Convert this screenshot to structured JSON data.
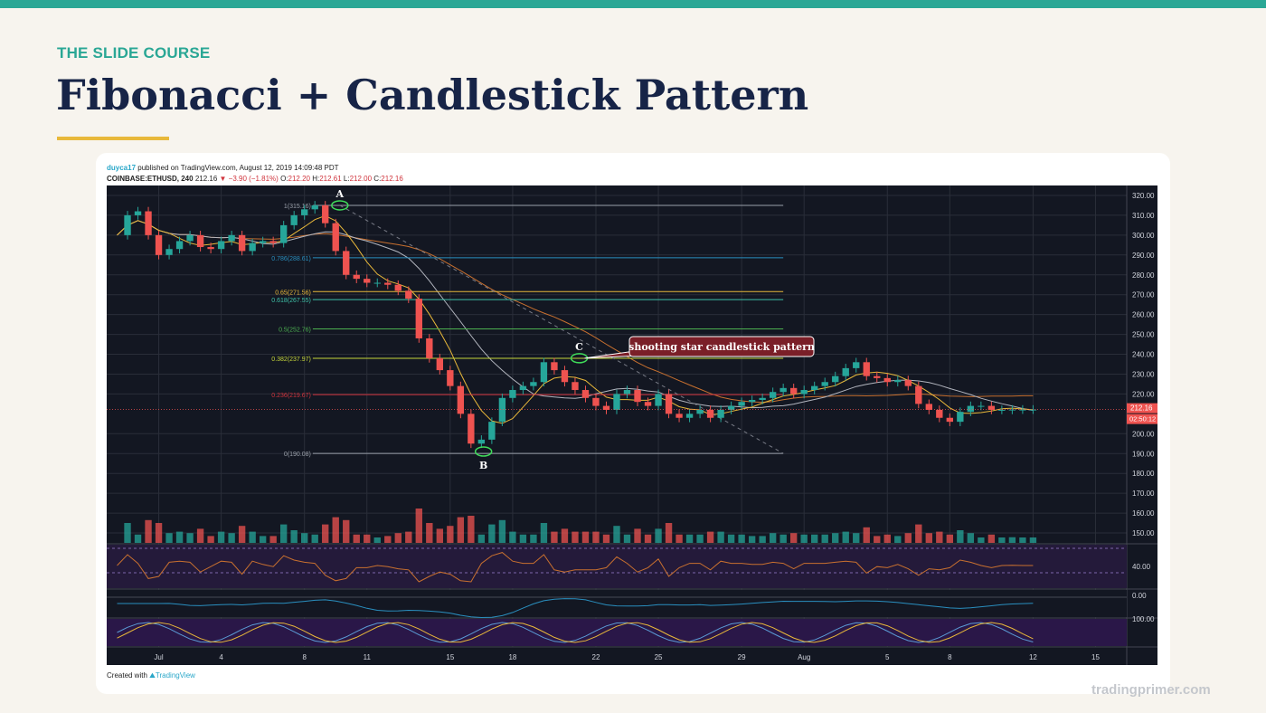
{
  "slide": {
    "kicker": "THE SLIDE COURSE",
    "title": "Fibonacci + Candlestick Pattern",
    "footer_site": "tradingprimer.com",
    "colors": {
      "accent": "#2aa795",
      "title": "#172447",
      "underline": "#e8b83a"
    }
  },
  "chart_meta": {
    "author": "duyca17",
    "published": "published on TradingView.com, August 12, 2019 14:09:48 PDT",
    "symbol": "COINBASE:ETHUSD, 240",
    "last": "212.16",
    "change": "−3.90 (−1.81%)",
    "o_label": "O:",
    "o": "212.20",
    "h_label": "H:",
    "h": "212.61",
    "l_label": "L:",
    "l": "212.00",
    "c_label": "C:",
    "c": "212.16",
    "created_with": "Created with",
    "brand": "TradingView",
    "price_tag": "212.16",
    "countdown": "02:50:12"
  },
  "chart_data": {
    "type": "line",
    "title": "",
    "xlabel": "",
    "ylabel": "",
    "ylim": [
      145,
      325
    ],
    "grid": true,
    "theme": "dark",
    "x_ticks": [
      {
        "label": "Jul",
        "day": 1
      },
      {
        "label": "4",
        "day": 4
      },
      {
        "label": "8",
        "day": 8
      },
      {
        "label": "11",
        "day": 11
      },
      {
        "label": "15",
        "day": 15
      },
      {
        "label": "18",
        "day": 18
      },
      {
        "label": "22",
        "day": 22
      },
      {
        "label": "25",
        "day": 25
      },
      {
        "label": "29",
        "day": 29
      },
      {
        "label": "Aug",
        "day": 32
      },
      {
        "label": "5",
        "day": 36
      },
      {
        "label": "8",
        "day": 39
      },
      {
        "label": "12",
        "day": 43
      },
      {
        "label": "15",
        "day": 46
      }
    ],
    "y_ticks": [
      320,
      310,
      300,
      290,
      280,
      270,
      260,
      250,
      240,
      230,
      220,
      200,
      190,
      180,
      170,
      160,
      150
    ],
    "y_tick_labels": [
      "320.00",
      "310.00",
      "300.00",
      "290.00",
      "280.00",
      "270.00",
      "260.00",
      "250.00",
      "240.00",
      "230.00",
      "220.00",
      "200.00",
      "190.00",
      "180.00",
      "170.00",
      "160.00",
      "150.00"
    ],
    "series": [
      {
        "name": "",
        "kind": "candlestick-close",
        "x": [
          -1,
          -0.5,
          0,
          0.5,
          1,
          1.5,
          2,
          2.5,
          3,
          3.5,
          4,
          4.5,
          5,
          5.5,
          6,
          6.5,
          7,
          7.5,
          8,
          8.5,
          9,
          9.5,
          10,
          10.5,
          11,
          11.5,
          12,
          12.5,
          13,
          13.5,
          14,
          14.5,
          15,
          15.5,
          16,
          16.5,
          17,
          17.5,
          18,
          18.5,
          19,
          19.5,
          20,
          20.5,
          21,
          21.5,
          22,
          22.5,
          23,
          23.5,
          24,
          24.5,
          25,
          25.5,
          26,
          26.5,
          27,
          27.5,
          28,
          28.5,
          29,
          29.5,
          30,
          30.5,
          31,
          31.5,
          32,
          32.5,
          33,
          33.5,
          34,
          34.5,
          35,
          35.5,
          36,
          36.5,
          37,
          37.5,
          38,
          38.5,
          39,
          39.5,
          40,
          40.5,
          41,
          41.5,
          42,
          42.5,
          43
        ],
        "values": [
          300,
          310,
          312,
          300,
          290,
          293,
          297,
          300,
          294,
          293,
          297,
          300,
          292,
          296,
          297,
          296,
          305,
          310,
          313,
          315,
          306,
          292,
          280,
          278,
          276,
          276,
          275,
          272,
          268,
          248,
          238,
          232,
          224,
          210,
          195,
          197,
          206,
          218,
          222,
          224,
          226,
          236,
          232,
          226,
          222,
          218,
          214,
          212,
          220,
          222,
          216,
          214,
          220,
          210,
          208,
          210,
          212,
          208,
          212,
          214,
          216,
          217,
          218,
          221,
          223,
          220,
          222,
          224,
          226,
          229,
          233,
          236,
          229,
          228,
          226,
          227,
          224,
          215,
          212,
          208,
          206,
          211,
          214,
          214,
          212,
          212,
          212.16,
          212.16,
          212.16
        ]
      }
    ],
    "fib_levels": [
      {
        "ratio": "1",
        "price": 315,
        "label": "1(315.16)",
        "color": "#9aa0aa"
      },
      {
        "ratio": "0.786",
        "price": 288.61,
        "label": "0.786(288.61)",
        "color": "#2a8fbf"
      },
      {
        "ratio": "0.65",
        "price": 271.56,
        "label": "0.65(271.56)",
        "color": "#e8b83a"
      },
      {
        "ratio": "0.618",
        "price": 267.55,
        "label": "0.618(267.55)",
        "color": "#3fc2a8"
      },
      {
        "ratio": "0.5",
        "price": 252.76,
        "label": "0.5(252.76)",
        "color": "#4caf50"
      },
      {
        "ratio": "0.382",
        "price": 237.97,
        "label": "0.382(237.97)",
        "color": "#c6d63a"
      },
      {
        "ratio": "0.236",
        "price": 219.67,
        "label": "0.236(219.67)",
        "color": "#d0333c"
      },
      {
        "ratio": "0",
        "price": 190.08,
        "label": "0(190.08)",
        "color": "#9aa0aa"
      }
    ],
    "points": [
      {
        "label": "A",
        "day": 9.7,
        "price": 315
      },
      {
        "label": "B",
        "day": 16.6,
        "price": 191
      },
      {
        "label": "C",
        "day": 21.2,
        "price": 238
      }
    ],
    "annotations": [
      {
        "text": "shooting star candlestick pattern",
        "day": 21.2,
        "price": 238
      }
    ],
    "indicator_ticks": [
      {
        "panel": "rsi",
        "label": "40.00"
      },
      {
        "panel": "macd",
        "label": "0.00"
      },
      {
        "panel": "stoch",
        "label": "100.00"
      }
    ],
    "legend": "none"
  }
}
